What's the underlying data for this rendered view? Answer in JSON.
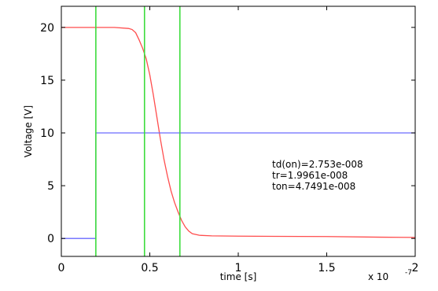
{
  "chart_data": {
    "type": "line",
    "xlabel": "time [s]",
    "ylabel": "Voltage [V]",
    "x_multiplier": "x 10",
    "x_multiplier_exp": "-7",
    "xlim": [
      0,
      2
    ],
    "ylim": [
      -1.7,
      22
    ],
    "x_ticks": [
      0,
      0.5,
      1,
      1.5,
      2
    ],
    "x_tick_labels": [
      "0",
      "0.5",
      "1",
      "1.5",
      "2"
    ],
    "y_ticks": [
      0,
      5,
      10,
      15,
      20
    ],
    "y_tick_labels": [
      "0",
      "5",
      "10",
      "15",
      "20"
    ],
    "grid": false,
    "series": [
      {
        "color": "#ff4d4d",
        "x": [
          0,
          0.1,
          0.2,
          0.3,
          0.38,
          0.4,
          0.42,
          0.44,
          0.46,
          0.48,
          0.5,
          0.52,
          0.54,
          0.56,
          0.58,
          0.6,
          0.62,
          0.64,
          0.66,
          0.68,
          0.7,
          0.72,
          0.74,
          0.78,
          0.85,
          1.0,
          1.2,
          1.5,
          1.8,
          2.0
        ],
        "y": [
          20,
          20,
          20,
          20,
          19.9,
          19.8,
          19.5,
          18.8,
          18.0,
          17.0,
          15.5,
          13.6,
          11.5,
          9.4,
          7.5,
          5.9,
          4.5,
          3.4,
          2.5,
          1.7,
          1.1,
          0.7,
          0.45,
          0.3,
          0.25,
          0.22,
          0.2,
          0.18,
          0.12,
          0.1
        ]
      },
      {
        "color": "#6a6aff",
        "x": [
          0,
          0.195,
          0.195,
          2.0
        ],
        "y": [
          0,
          0,
          10,
          10
        ]
      }
    ],
    "vertical_lines": {
      "color": "#3ddc3d",
      "x": [
        0.195,
        0.47,
        0.67
      ]
    },
    "annotations": [
      "td(on)=2.753e-008",
      "tr=1.9961e-008",
      "ton=4.7491e-008"
    ]
  }
}
